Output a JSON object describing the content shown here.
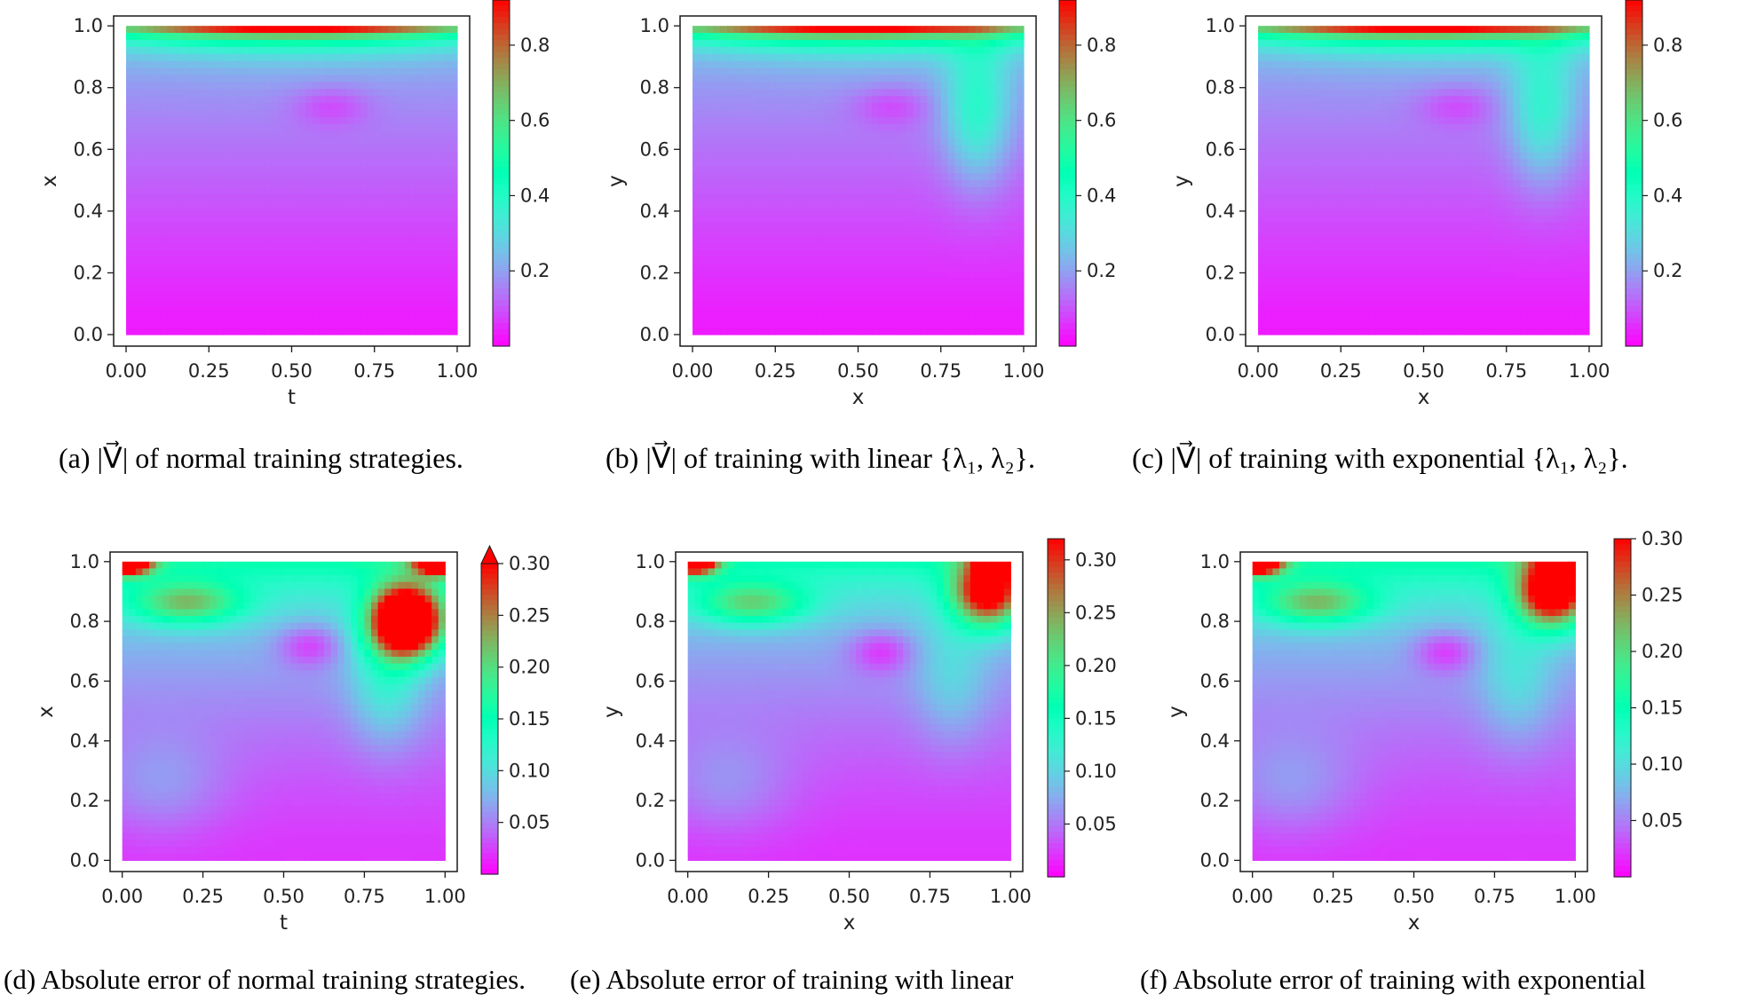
{
  "colors": {
    "colormap": "rainbow",
    "frame": "#1a1a1a",
    "gap_fill": "#ffffff",
    "magnitude_peak": "#e8191b",
    "background_low": "#6a18ee"
  },
  "captions": {
    "a": "(a) |V⃗| of normal training strategies.",
    "b": "(b) |V⃗| of training with linear {λ₁, λ₂}.",
    "c": "(c) |V⃗| of training with exponential {λ₁, λ₂}.",
    "d": "(d) Absolute error of normal training strategies.",
    "e": "(e)  Absolute  error  of  training  with  linear",
    "f": "(f) Absolute error of training with exponential"
  },
  "chart_data": [
    {
      "id": "a",
      "type": "heatmap",
      "variant": "magnitude",
      "xlabel": "t",
      "ylabel": "x",
      "xlim": [
        0,
        1
      ],
      "ylim": [
        0,
        1
      ],
      "xticks": [
        "0.00",
        "0.25",
        "0.50",
        "0.75",
        "1.00"
      ],
      "yticks": [
        "0.0",
        "0.2",
        "0.4",
        "0.6",
        "0.8",
        "1.0"
      ],
      "colorbar": {
        "min": 0,
        "max": 0.92,
        "ticks": [
          "0.2",
          "0.4",
          "0.6",
          "0.8"
        ],
        "tick_values": [
          0.2,
          0.4,
          0.6,
          0.8
        ],
        "extend": false
      },
      "features": {
        "lid_peak": 0.92,
        "vortex_center": [
          0.62,
          0.74
        ],
        "shear_band": 0.0
      }
    },
    {
      "id": "b",
      "type": "heatmap",
      "variant": "magnitude",
      "xlabel": "x",
      "ylabel": "y",
      "xlim": [
        0,
        1
      ],
      "ylim": [
        0,
        1
      ],
      "xticks": [
        "0.00",
        "0.25",
        "0.50",
        "0.75",
        "1.00"
      ],
      "yticks": [
        "0.0",
        "0.2",
        "0.4",
        "0.6",
        "0.8",
        "1.0"
      ],
      "colorbar": {
        "min": 0,
        "max": 0.92,
        "ticks": [
          "0.2",
          "0.4",
          "0.6",
          "0.8"
        ],
        "tick_values": [
          0.2,
          0.4,
          0.6,
          0.8
        ],
        "extend": false
      },
      "features": {
        "lid_peak": 0.92,
        "vortex_center": [
          0.6,
          0.74
        ],
        "shear_band": 0.22
      }
    },
    {
      "id": "c",
      "type": "heatmap",
      "variant": "magnitude",
      "xlabel": "x",
      "ylabel": "y",
      "xlim": [
        0,
        1
      ],
      "ylim": [
        0,
        1
      ],
      "xticks": [
        "0.00",
        "0.25",
        "0.50",
        "0.75",
        "1.00"
      ],
      "yticks": [
        "0.0",
        "0.2",
        "0.4",
        "0.6",
        "0.8",
        "1.0"
      ],
      "colorbar": {
        "min": 0,
        "max": 0.92,
        "ticks": [
          "0.2",
          "0.4",
          "0.6",
          "0.8"
        ],
        "tick_values": [
          0.2,
          0.4,
          0.6,
          0.8
        ],
        "extend": false
      },
      "features": {
        "lid_peak": 0.92,
        "vortex_center": [
          0.6,
          0.74
        ],
        "shear_band": 0.2
      }
    },
    {
      "id": "d",
      "type": "heatmap",
      "variant": "error",
      "xlabel": "t",
      "ylabel": "x",
      "xlim": [
        0,
        1
      ],
      "ylim": [
        0,
        1
      ],
      "xticks": [
        "0.00",
        "0.25",
        "0.50",
        "0.75",
        "1.00"
      ],
      "yticks": [
        "0.0",
        "0.2",
        "0.4",
        "0.6",
        "0.8",
        "1.0"
      ],
      "colorbar": {
        "min": 0,
        "max": 0.3,
        "ticks": [
          "0.05",
          "0.10",
          "0.15",
          "0.20",
          "0.25",
          "0.30"
        ],
        "tick_values": [
          0.05,
          0.1,
          0.15,
          0.2,
          0.25,
          0.3
        ],
        "extend": true
      },
      "features": {
        "hotspot_center": [
          0.88,
          0.8
        ],
        "hotspot_peak": 0.38,
        "corner_error": 0.3,
        "vortex_center": [
          0.58,
          0.72
        ]
      }
    },
    {
      "id": "e",
      "type": "heatmap",
      "variant": "error",
      "xlabel": "x",
      "ylabel": "y",
      "xlim": [
        0,
        1
      ],
      "ylim": [
        0,
        1
      ],
      "xticks": [
        "0.00",
        "0.25",
        "0.50",
        "0.75",
        "1.00"
      ],
      "yticks": [
        "0.0",
        "0.2",
        "0.4",
        "0.6",
        "0.8",
        "1.0"
      ],
      "colorbar": {
        "min": 0,
        "max": 0.32,
        "ticks": [
          "0.05",
          "0.10",
          "0.15",
          "0.20",
          "0.25",
          "0.30"
        ],
        "tick_values": [
          0.05,
          0.1,
          0.15,
          0.2,
          0.25,
          0.3
        ],
        "extend": false
      },
      "features": {
        "hotspot_center": [
          0.93,
          0.9
        ],
        "hotspot_peak": 0.26,
        "corner_error": 0.3,
        "vortex_center": [
          0.6,
          0.7
        ]
      }
    },
    {
      "id": "f",
      "type": "heatmap",
      "variant": "error",
      "xlabel": "x",
      "ylabel": "y",
      "xlim": [
        0,
        1
      ],
      "ylim": [
        0,
        1
      ],
      "xticks": [
        "0.00",
        "0.25",
        "0.50",
        "0.75",
        "1.00"
      ],
      "yticks": [
        "0.0",
        "0.2",
        "0.4",
        "0.6",
        "0.8",
        "1.0"
      ],
      "colorbar": {
        "min": 0,
        "max": 0.3,
        "ticks": [
          "0.05",
          "0.10",
          "0.15",
          "0.20",
          "0.25",
          "0.30"
        ],
        "tick_values": [
          0.05,
          0.1,
          0.15,
          0.2,
          0.25,
          0.3
        ],
        "extend": false
      },
      "features": {
        "hotspot_center": [
          0.93,
          0.9
        ],
        "hotspot_peak": 0.27,
        "corner_error": 0.3,
        "vortex_center": [
          0.6,
          0.7
        ]
      }
    }
  ]
}
